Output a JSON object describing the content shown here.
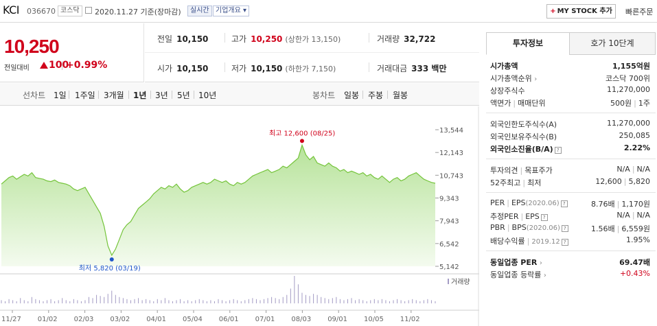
{
  "header": {
    "name": "KCI",
    "code": "036670",
    "market": "코스닥",
    "date": "2020.11.27 기준(장마감)",
    "realtime": "실시간",
    "corp": "기업개요",
    "mystock": "MY STOCK 추가",
    "quick": "빠른주문"
  },
  "price": {
    "current": "10,250",
    "compare_label": "전일대비",
    "change": "100",
    "pct": "+0.99%"
  },
  "stats": {
    "prev_label": "전일",
    "prev": "10,150",
    "high_label": "고가",
    "high": "10,250",
    "upper": "(상한가 13,150)",
    "volume_label": "거래량",
    "volume": "32,722",
    "open_label": "시가",
    "open": "10,150",
    "low_label": "저가",
    "low": "10,150",
    "lower": "(하한가 7,150)",
    "amount_label": "거래대금",
    "amount": "333 백만"
  },
  "tabs": {
    "line_label": "선차트",
    "periods": [
      "1일",
      "1주일",
      "3개월",
      "1년",
      "3년",
      "5년",
      "10년"
    ],
    "candle_label": "봉차트",
    "candles": [
      "일봉",
      "주봉",
      "월봉"
    ]
  },
  "chart_data": {
    "type": "area",
    "y_ticks": [
      "13,544",
      "12,143",
      "10,743",
      "9,343",
      "7,943",
      "6,542",
      "5,142"
    ],
    "ylim": [
      5142,
      13544
    ],
    "x_ticks": [
      "11/27",
      "01/02",
      "02/03",
      "03/02",
      "04/01",
      "05/04",
      "06/01",
      "07/01",
      "08/03",
      "09/01",
      "10/05",
      "11/02"
    ],
    "high_annotation": "최고 12,600 (08/25)",
    "low_annotation": "최저 5,820 (03/19)",
    "volume_label": "거래량",
    "series": [
      {
        "name": "",
        "values": [
          10200,
          10400,
          10600,
          10700,
          10500,
          10650,
          10800,
          10700,
          10900,
          10600,
          10550,
          10500,
          10400,
          10350,
          10450,
          10300,
          10250,
          10200,
          10100,
          9900,
          9800,
          9900,
          10000,
          9600,
          9200,
          8800,
          8400,
          7600,
          6400,
          5820,
          6200,
          6800,
          7400,
          7700,
          7900,
          8300,
          8700,
          8900,
          9100,
          9300,
          9600,
          9800,
          10000,
          9900,
          10100,
          10000,
          10200,
          9900,
          9700,
          9800,
          10000,
          10100,
          10200,
          10300,
          10200,
          10300,
          10500,
          10400,
          10300,
          10400,
          10200,
          10100,
          10300,
          10200,
          10300,
          10500,
          10700,
          10800,
          10900,
          11000,
          11100,
          10900,
          11000,
          11100,
          11300,
          11200,
          11400,
          11600,
          11800,
          12600,
          12000,
          11700,
          11900,
          11500,
          11400,
          11300,
          11500,
          11300,
          11200,
          11000,
          11100,
          10900,
          11000,
          10900,
          10800,
          10900,
          10700,
          10800,
          10600,
          10500,
          10700,
          10500,
          10300,
          10500,
          10600,
          10400,
          10500,
          10700,
          10800,
          10900,
          10700,
          10500,
          10400,
          10300,
          10250
        ]
      }
    ],
    "volume": [
      3,
      2,
      4,
      3,
      2,
      5,
      3,
      2,
      6,
      4,
      3,
      2,
      3,
      4,
      2,
      3,
      5,
      3,
      2,
      4,
      3,
      2,
      3,
      6,
      5,
      8,
      7,
      6,
      9,
      12,
      8,
      6,
      5,
      4,
      3,
      4,
      5,
      3,
      4,
      3,
      2,
      4,
      3,
      5,
      3,
      2,
      3,
      4,
      2,
      3,
      2,
      3,
      4,
      3,
      2,
      3,
      2,
      4,
      3,
      2,
      3,
      4,
      3,
      2,
      3,
      4,
      5,
      4,
      3,
      4,
      5,
      6,
      5,
      4,
      6,
      8,
      14,
      26,
      18,
      10,
      8,
      7,
      9,
      8,
      6,
      5,
      4,
      5,
      6,
      4,
      3,
      4,
      5,
      3,
      4,
      3,
      2,
      3,
      4,
      3,
      4,
      3,
      2,
      3,
      4,
      3,
      2,
      3,
      4,
      3,
      2,
      3,
      4,
      3,
      2
    ]
  },
  "panel": {
    "tab_info": "투자정보",
    "tab_hoga": "호가 10단계",
    "mcap_label": "시가총액",
    "mcap": "1,155억원",
    "mcap_rank_label": "시가총액순위",
    "mcap_rank": "코스닥 700위",
    "shares_label": "상장주식수",
    "shares": "11,270,000",
    "face_label": "액면가",
    "unit_label": "매매단위",
    "face": "500원",
    "unit": "1주",
    "foreign_limit_label": "외국인한도주식수(A)",
    "foreign_limit": "11,270,000",
    "foreign_hold_label": "외국인보유주식수(B)",
    "foreign_hold": "250,085",
    "foreign_rate_label": "외국인소진율(B/A)",
    "foreign_rate": "2.22%",
    "opinion_label": "투자의견",
    "target_label": "목표주가",
    "opinion": "N/A",
    "target": "N/A",
    "w52_high_label": "52주최고",
    "w52_low_label": "최저",
    "w52_high": "12,600",
    "w52_low": "5,820",
    "per_label": "PER",
    "eps_label": "EPS",
    "per_date": "(2020.06)",
    "per": "8.76배",
    "eps": "1,170원",
    "est_per_label": "추정PER",
    "est_eps_label": "EPS",
    "est_per": "N/A",
    "est_eps": "N/A",
    "pbr_label": "PBR",
    "bps_label": "BPS",
    "pbr_date": "(2020.06)",
    "pbr": "1.56배",
    "bps": "6,559원",
    "div_label": "배당수익률",
    "div_date": "2019.12",
    "div": "1.95%",
    "ind_per_label": "동일업종 PER",
    "ind_per": "69.47배",
    "ind_rate_label": "동일업종 등락률",
    "ind_rate": "+0.43%"
  }
}
